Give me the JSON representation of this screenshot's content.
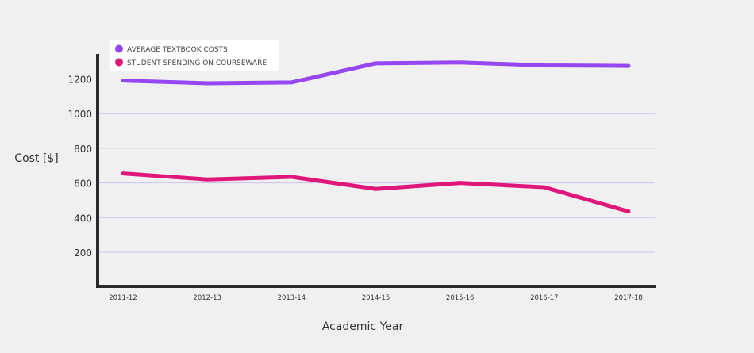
{
  "chart_data": {
    "type": "line",
    "xlabel": "Academic Year",
    "ylabel": "Cost [$]",
    "categories": [
      "2011-12",
      "2012-13",
      "2013-14",
      "2014-15",
      "2015-16",
      "2016-17",
      "2017-18"
    ],
    "ylim": [
      0,
      1350
    ],
    "yticks": [
      200,
      400,
      600,
      800,
      1000,
      1200
    ],
    "grid": true,
    "legend_position": "top-left",
    "series": [
      {
        "name": "AVERAGE TEXTBOOK COSTS",
        "color": "#9447f2",
        "values": [
          1190,
          1175,
          1180,
          1290,
          1295,
          1278,
          1275
        ]
      },
      {
        "name": "STUDENT SPENDING ON COURSEWARE",
        "color": "#e0177a",
        "values": [
          655,
          620,
          635,
          565,
          600,
          575,
          435
        ]
      }
    ]
  }
}
